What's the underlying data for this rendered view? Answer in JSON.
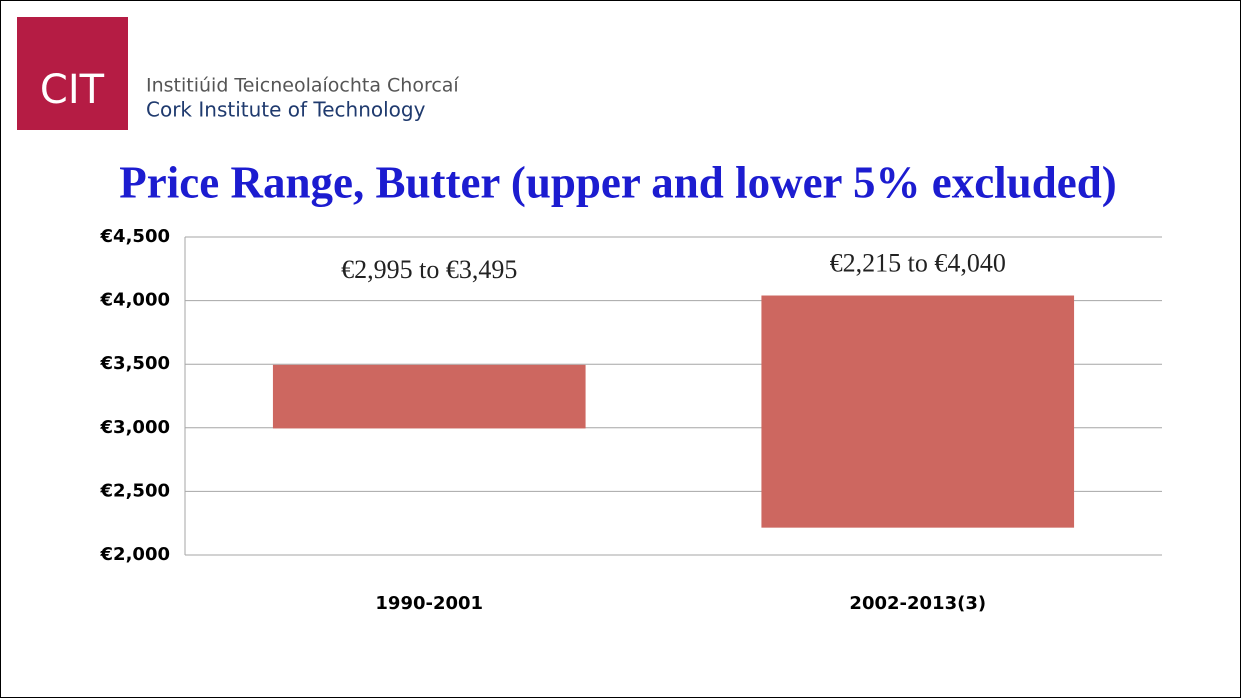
{
  "header": {
    "logo": "CIT",
    "name_irish": "Institiúid Teicneolaíochta Chorcaí",
    "name_english": "Cork Institute of Technology"
  },
  "chart_data": {
    "type": "floating-bar",
    "title": "Price Range, Butter (upper and lower 5% excluded)",
    "categories": [
      "1990-2001",
      "2002-2013(3)"
    ],
    "low": [
      2995,
      2215
    ],
    "high": [
      3495,
      4040
    ],
    "value_labels": [
      "€2,995 to €3,495",
      "€2,215 to €4,040"
    ],
    "color": "#cd6760",
    "ylim": [
      2000,
      4500
    ],
    "yticks": [
      {
        "value": 2000,
        "label": "€2,000"
      },
      {
        "value": 2500,
        "label": "€2,500"
      },
      {
        "value": 3000,
        "label": "€3,000"
      },
      {
        "value": 3500,
        "label": "€3,500"
      },
      {
        "value": 4000,
        "label": "€4,000"
      },
      {
        "value": 4500,
        "label": "€4,500"
      }
    ],
    "grid": true
  }
}
